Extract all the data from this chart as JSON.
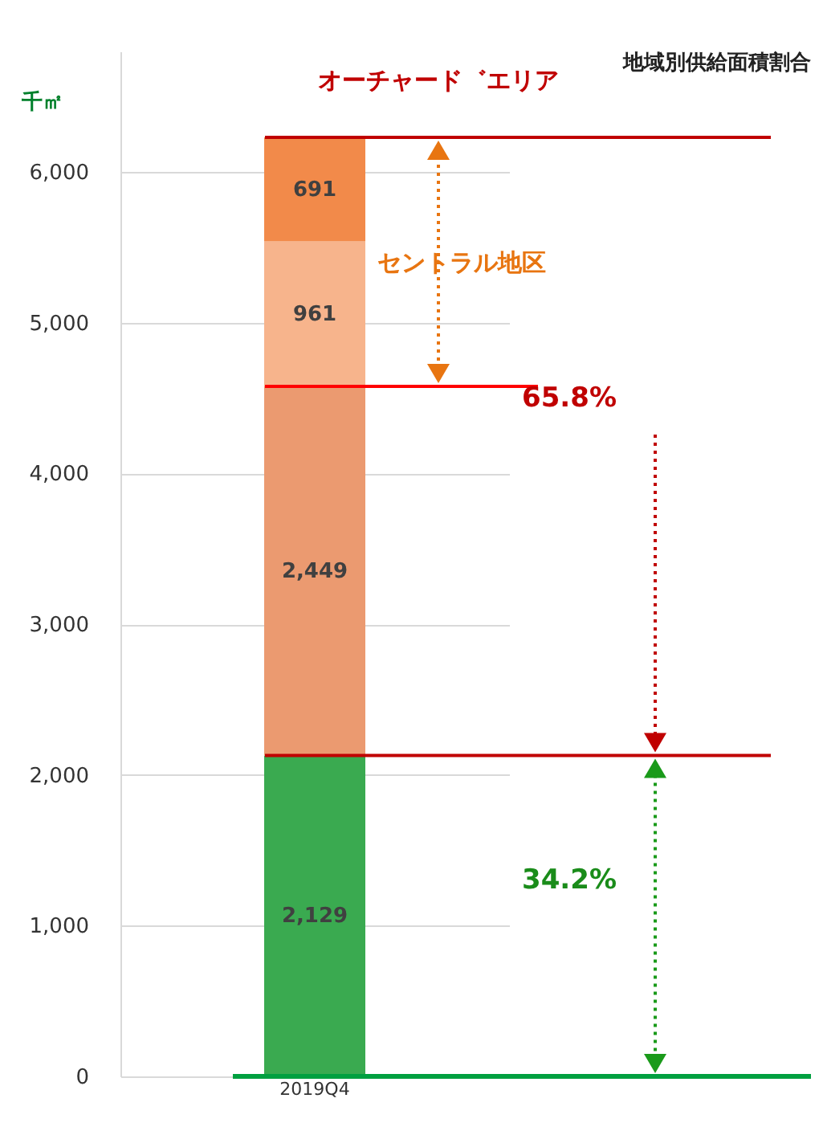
{
  "chart_data": {
    "type": "bar",
    "title": "地域別供給面積割合",
    "ylabel": "千㎡",
    "categories": [
      "2019Q4"
    ],
    "stacked": true,
    "series": [
      {
        "color": "#3aaa50",
        "values": [
          2129
        ],
        "value_labels": [
          "2,129"
        ]
      },
      {
        "color": "#eb9a70",
        "values": [
          2449
        ],
        "value_labels": [
          "2,449"
        ]
      },
      {
        "color": "#f7b48c",
        "values": [
          961
        ],
        "value_labels": [
          "961"
        ]
      },
      {
        "color": "#f28a4a",
        "values": [
          691
        ],
        "value_labels": [
          "691"
        ]
      }
    ],
    "data_labels": true,
    "ylim": [
      0,
      6800
    ],
    "yticks": [
      0,
      {
        "value": 1000,
        "label": "1,000"
      },
      {
        "value": 2000,
        "label": "2,000"
      },
      {
        "value": 3000,
        "label": "3,000"
      },
      {
        "value": 4000,
        "label": "4,000"
      },
      {
        "value": 5000,
        "label": "5,000"
      },
      {
        "value": 6000,
        "label": "6,000"
      }
    ],
    "grid": "y",
    "ref_lines": [
      {
        "axis": "y",
        "value": 6230,
        "color": "#c00000"
      },
      {
        "axis": "y",
        "value": 4578,
        "color": "#ff0000"
      },
      {
        "axis": "y",
        "value": 2129,
        "color": "#c00000"
      },
      {
        "axis": "y",
        "value": 0,
        "color": "#00a040"
      }
    ],
    "annotations": [
      "オーチャード゛エリア",
      "セントラル地区",
      "65.8%",
      "34.2%"
    ]
  }
}
